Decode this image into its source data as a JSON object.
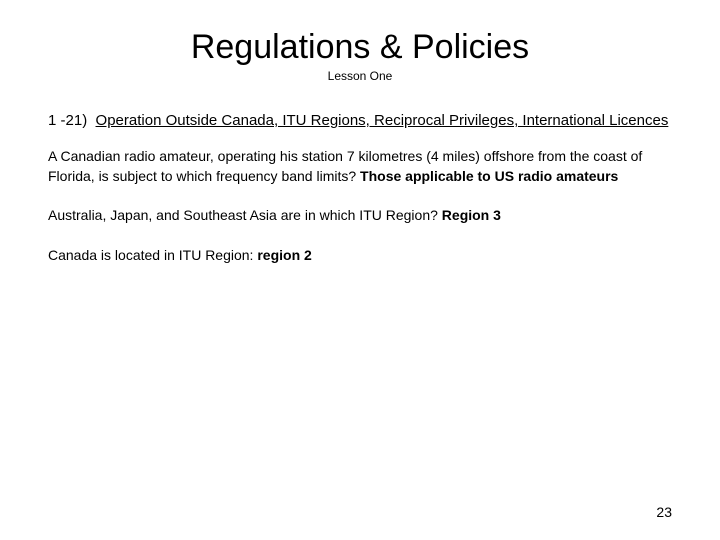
{
  "title": "Regulations & Policies",
  "subtitle": "Lesson One",
  "section": {
    "number": "1 -21)",
    "heading_text": "Operation Outside Canada, ITU Regions, Reciprocal Privileges, International Licences"
  },
  "q1": {
    "prefix": "A Canadian radio amateur, operating his station 7 kilometres (4 miles) offshore from the coast of Florida, is subject to which frequency band limits?  ",
    "answer": "Those applicable to US radio amateurs"
  },
  "q2": {
    "prefix": "Australia, Japan, and Southeast Asia are in which ITU Region? ",
    "answer": "Region 3"
  },
  "q3": {
    "prefix": "Canada is located in ITU Region: ",
    "answer": "region 2"
  },
  "page_number": "23"
}
